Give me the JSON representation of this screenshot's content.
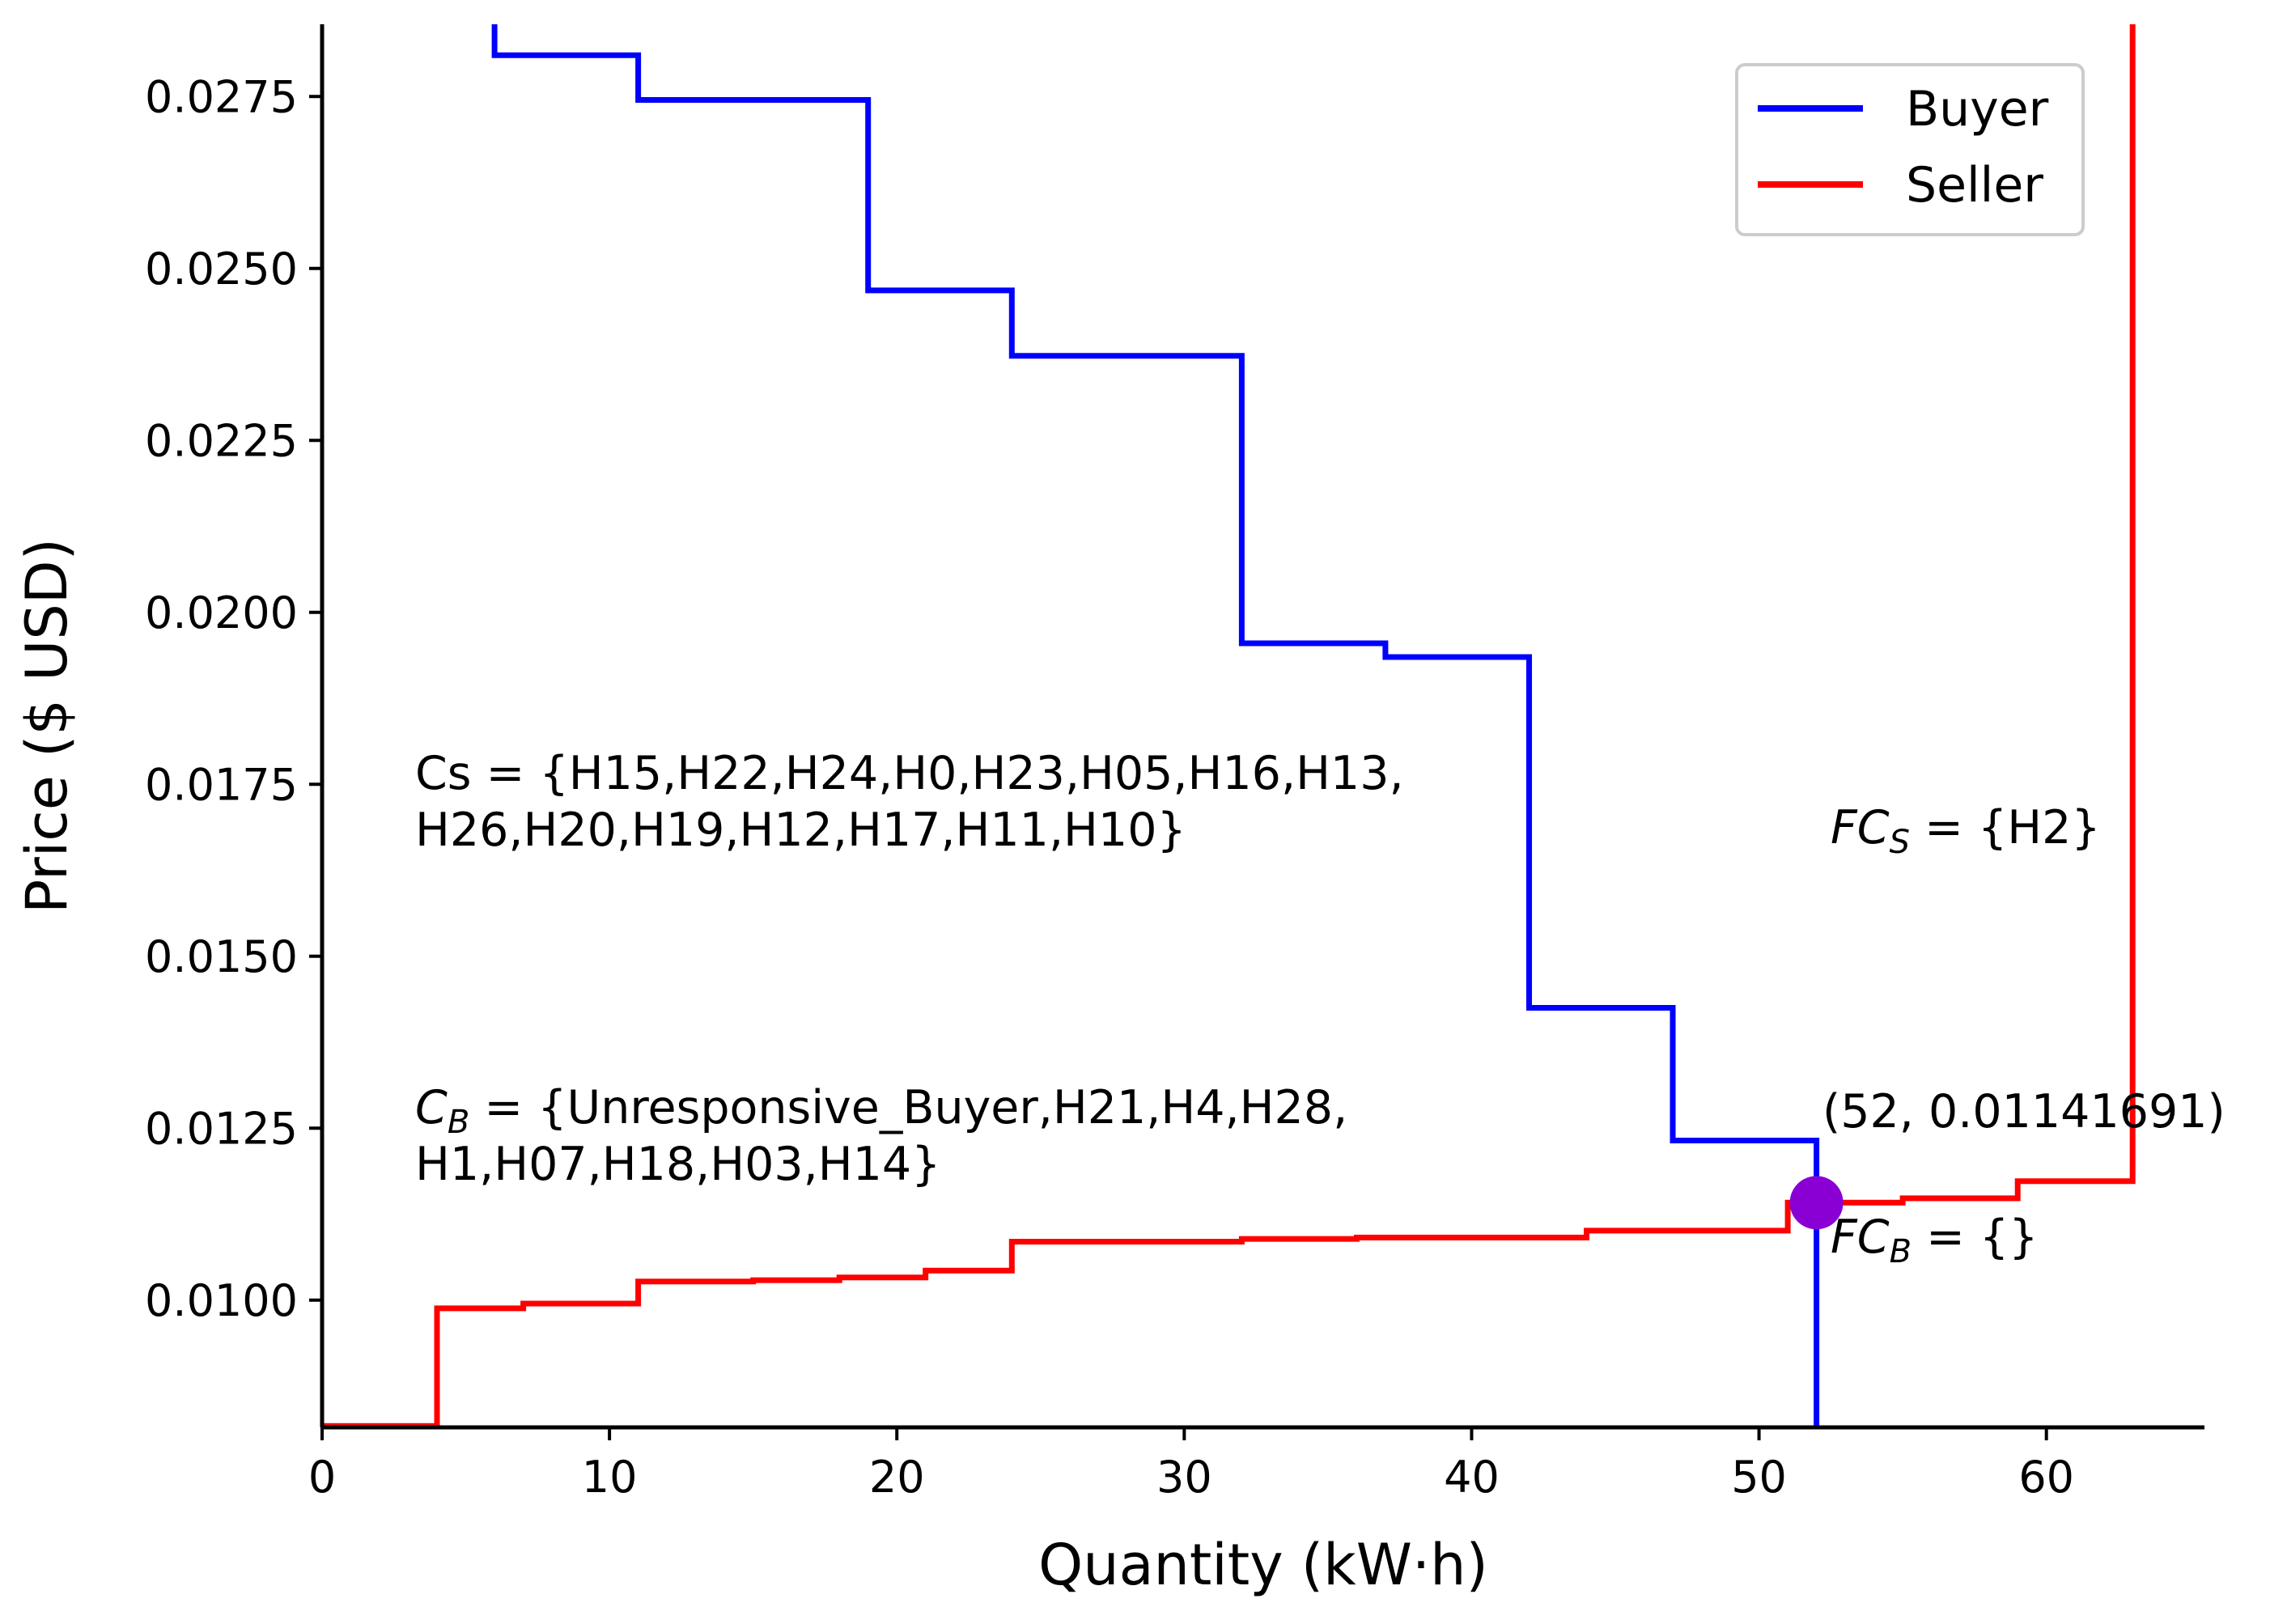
{
  "chart_data": {
    "type": "line",
    "step": true,
    "title": "",
    "xlabel": "Quantity (kW·h)",
    "ylabel": "Price ($ USD)",
    "xlim": [
      0,
      65.5
    ],
    "ylim": [
      0.00815,
      0.02855
    ],
    "xticks": [
      0,
      10,
      20,
      30,
      40,
      50,
      60
    ],
    "xtick_labels": [
      "0",
      "10",
      "20",
      "30",
      "40",
      "50",
      "60"
    ],
    "yticks": [
      0.01,
      0.0125,
      0.015,
      0.0175,
      0.02,
      0.0225,
      0.025,
      0.0275
    ],
    "ytick_labels": [
      "0.0100",
      "0.0125",
      "0.0150",
      "0.0175",
      "0.0200",
      "0.0225",
      "0.0250",
      "0.0275"
    ],
    "legend": {
      "location": "top-right",
      "entries": [
        "Buyer",
        "Seller"
      ]
    },
    "series": [
      {
        "name": "Buyer",
        "color": "#0000ff",
        "points": [
          [
            6,
            0.0289
          ],
          [
            6,
            0.0281
          ],
          [
            11,
            0.0281
          ],
          [
            11,
            0.02745
          ],
          [
            19,
            0.02745
          ],
          [
            19,
            0.02468
          ],
          [
            24,
            0.02468
          ],
          [
            24,
            0.02373
          ],
          [
            32,
            0.02373
          ],
          [
            32,
            0.01955
          ],
          [
            37,
            0.01955
          ],
          [
            37,
            0.01935
          ],
          [
            42,
            0.01935
          ],
          [
            42,
            0.01425
          ],
          [
            47,
            0.01425
          ],
          [
            47,
            0.01232
          ],
          [
            52,
            0.01232
          ],
          [
            52,
            0.0081
          ]
        ]
      },
      {
        "name": "Seller",
        "color": "#ff0000",
        "points": [
          [
            0,
            0.00817
          ],
          [
            4,
            0.00817
          ],
          [
            4,
            0.00988
          ],
          [
            7,
            0.00988
          ],
          [
            7,
            0.00995
          ],
          [
            11,
            0.00995
          ],
          [
            11,
            0.01027
          ],
          [
            15,
            0.01027
          ],
          [
            15,
            0.01029
          ],
          [
            18,
            0.01029
          ],
          [
            18,
            0.01033
          ],
          [
            21,
            0.01033
          ],
          [
            21,
            0.01043
          ],
          [
            24,
            0.01043
          ],
          [
            24,
            0.01085
          ],
          [
            32,
            0.01085
          ],
          [
            32,
            0.01089
          ],
          [
            36,
            0.01089
          ],
          [
            36,
            0.01091
          ],
          [
            44,
            0.01091
          ],
          [
            44,
            0.01101
          ],
          [
            51,
            0.01101
          ],
          [
            51,
            0.01141691
          ],
          [
            55,
            0.01141691
          ],
          [
            55,
            0.01148
          ],
          [
            59,
            0.01148
          ],
          [
            59,
            0.01173
          ],
          [
            63,
            0.01173
          ],
          [
            63,
            0.0289
          ]
        ]
      }
    ],
    "equilibrium": {
      "x": 52,
      "y": 0.01141691,
      "label": "(52, 0.01141691)",
      "color": "#8a00d4"
    },
    "annotations": {
      "cs_line1": "Cs = {H15,H22,H24,H0,H23,H05,H16,H13,",
      "cs_line2": "H26,H20,H19,H12,H17,H11,H10}",
      "cb_prefix": "C",
      "cb_sub": "B",
      "cb_line1_rest": " = {Unresponsive_Buyer,H21,H4,H28,",
      "cb_line2": "H1,H07,H18,H03,H14}",
      "fcs_prefix": "FC",
      "fcs_sub": "S",
      "fcs_rest": " = {H2}",
      "fcb_prefix": "FC",
      "fcb_sub": "B",
      "fcb_rest": " = {}"
    }
  }
}
